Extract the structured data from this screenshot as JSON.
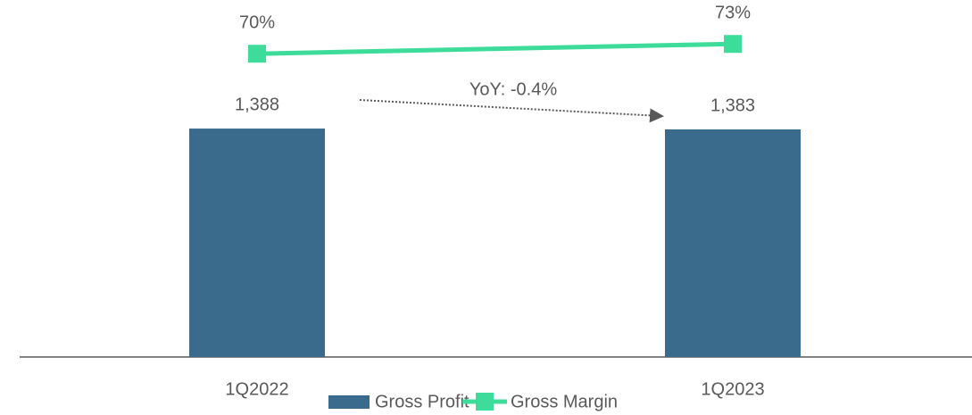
{
  "chart_data": {
    "type": "bar_line",
    "categories": [
      "1Q2022",
      "1Q2023"
    ],
    "series": [
      {
        "name": "Gross Profit",
        "type": "bar",
        "color": "#3a6a8c",
        "values": [
          1388,
          1383
        ],
        "value_labels": [
          "1,388",
          "1,383"
        ]
      },
      {
        "name": "Gross Margin",
        "type": "line",
        "axis": "y2",
        "color": "#3ddc9b",
        "values": [
          70,
          73
        ],
        "value_labels": [
          "70%",
          "73%"
        ]
      }
    ],
    "annotation": "YoY: -0.4%",
    "ylim": [
      0,
      2115
    ],
    "y2lim": [
      -22.7,
      83.7
    ],
    "grid": false,
    "legend": "bottom"
  }
}
